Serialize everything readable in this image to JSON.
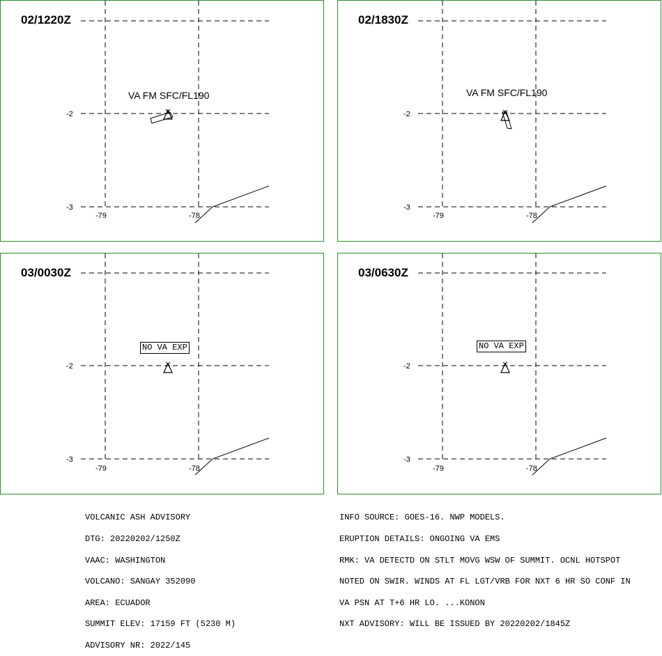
{
  "panels": [
    {
      "time": "02/1220Z",
      "label": "VA FM SFC/FL190",
      "label_type": "plain",
      "ash": "elongated-west"
    },
    {
      "time": "02/1830Z",
      "label": "VA FM SFC/FL190",
      "label_type": "plain",
      "ash": "elongated-south"
    },
    {
      "time": "03/0030Z",
      "label": "NO VA EXP",
      "label_type": "boxed",
      "ash": "none"
    },
    {
      "time": "03/0630Z",
      "label": "NO VA EXP",
      "label_type": "boxed",
      "ash": "none"
    }
  ],
  "axis": {
    "lat_labels": [
      "-2",
      "-3"
    ],
    "lon_labels": [
      "-79",
      "-78"
    ]
  },
  "colors": {
    "panel_border": "#2e8b2e",
    "grid": "#000000"
  },
  "advisory_left": {
    "lines": [
      "VOLCANIC ASH ADVISORY",
      "DTG: 20220202/1250Z",
      "VAAC: WASHINGTON",
      "VOLCANO: SANGAY 352090",
      "AREA: ECUADOR",
      "SUMMIT ELEV: 17159 FT (5230 M)",
      "ADVISORY NR: 2022/145"
    ]
  },
  "advisory_right": {
    "lines": [
      "INFO SOURCE: GOES-16. NWP MODELS.",
      "ERUPTION DETAILS: ONGOING VA EMS",
      "RMK: VA DETECTD ON STLT MOVG WSW OF SUMMIT. OCNL HOTSPOT",
      "NOTED ON SWIR. WINDS AT FL LGT/VRB FOR NXT 6 HR SO CONF IN",
      "VA PSN AT T+6 HR LO. ...KONON",
      "NXT ADVISORY: WILL BE ISSUED BY 20220202/1845Z"
    ]
  }
}
